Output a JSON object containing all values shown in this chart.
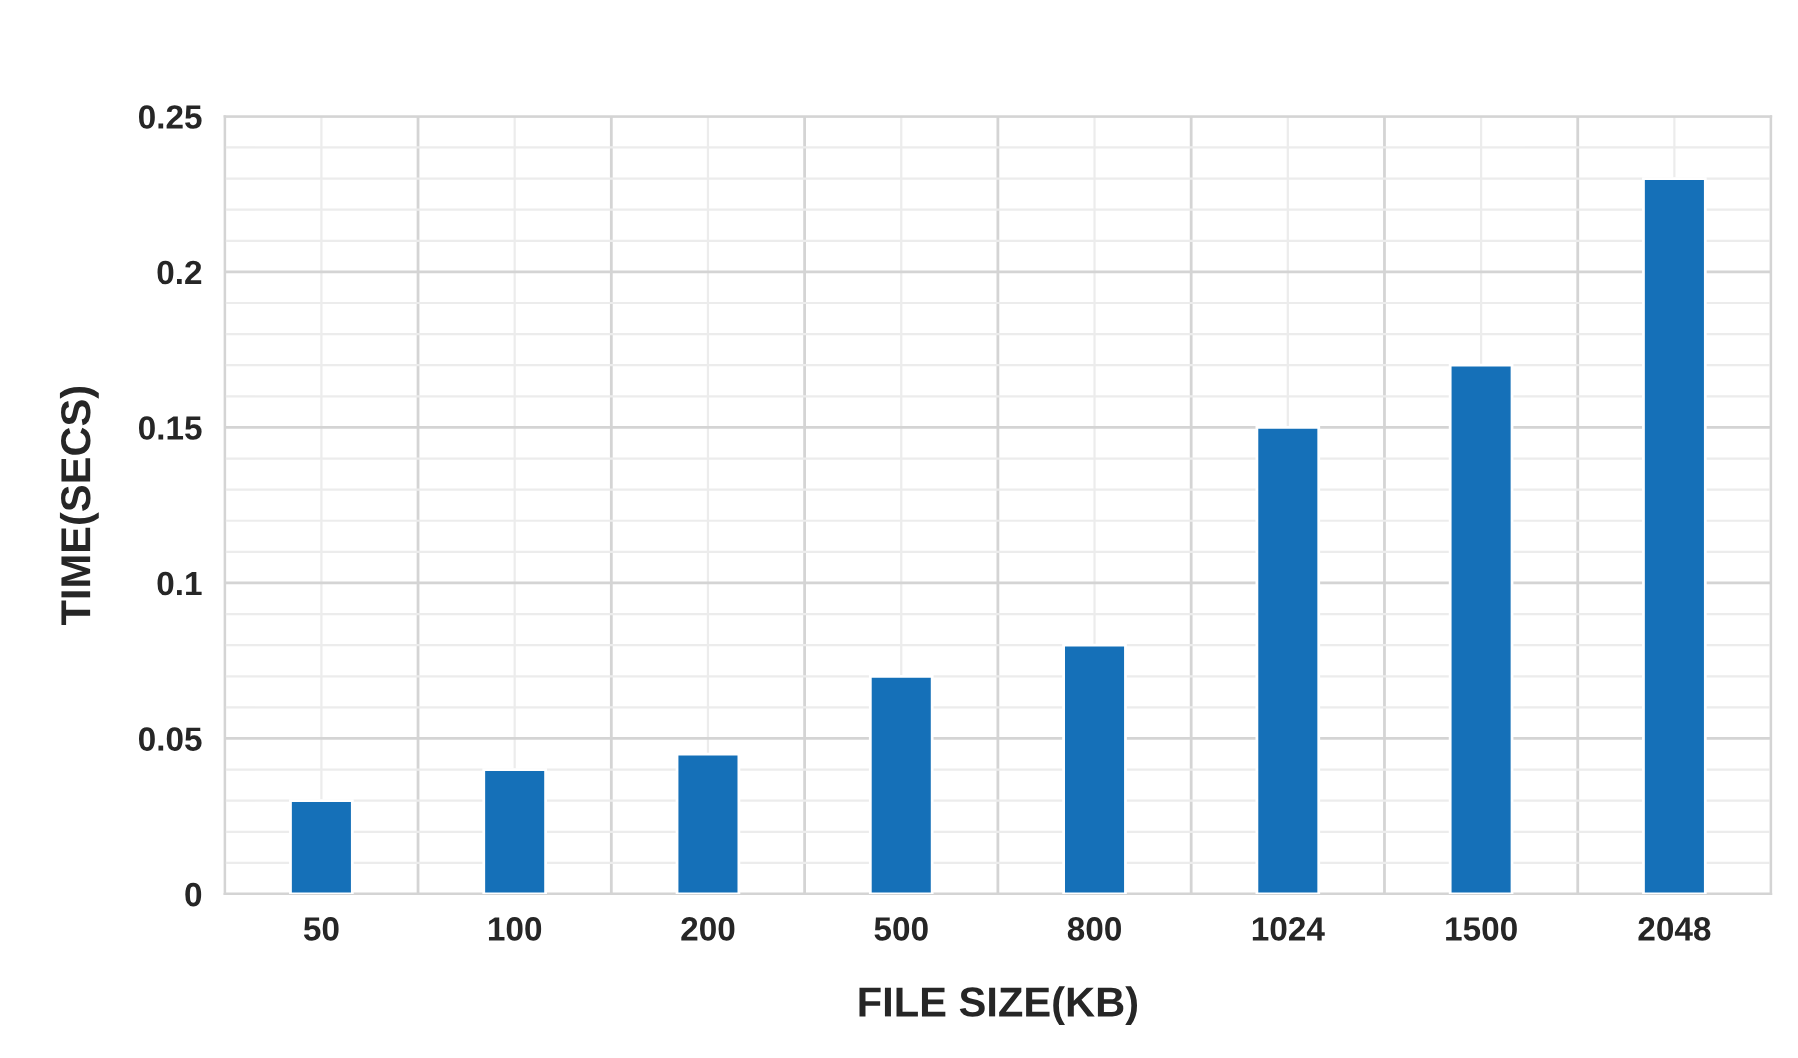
{
  "chart_data": {
    "type": "bar",
    "xlabel": "FILE SIZE(KB)",
    "ylabel": "TIME(SECS)",
    "categories": [
      "50",
      "100",
      "200",
      "500",
      "800",
      "1024",
      "1500",
      "2048"
    ],
    "values": [
      0.03,
      0.04,
      0.045,
      0.07,
      0.08,
      0.15,
      0.17,
      0.23
    ],
    "color": "#1570b8",
    "ylim": [
      0,
      0.25
    ],
    "yticks": [
      0,
      0.05,
      0.1,
      0.15,
      0.2,
      0.25
    ],
    "grid": true
  }
}
